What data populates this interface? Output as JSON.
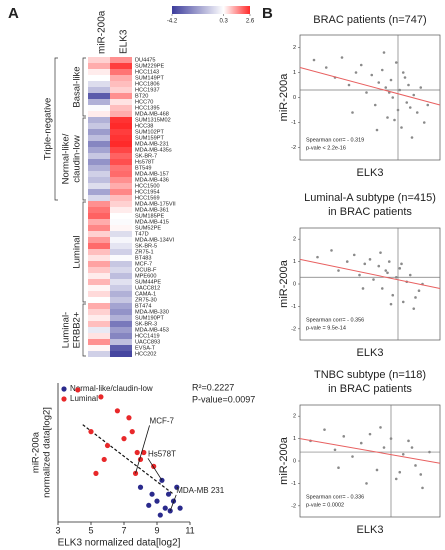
{
  "panel_a": {
    "label": "A",
    "heatmap": {
      "columns": [
        "miR-200a",
        "ELK3"
      ],
      "colorbar": {
        "ticks": [
          -4.2,
          0.3,
          2.6
        ],
        "colors": [
          "#3d3d9c",
          "#ffffff",
          "#ff2a2a"
        ]
      },
      "supergroup": "Triple-negative",
      "groups": [
        {
          "name": [
            "Basal-like"
          ],
          "rows": [
            {
              "name": "DU4475",
              "values": [
                0.8,
                1.5
              ]
            },
            {
              "name": "SUM229PE",
              "values": [
                1.2,
                2.4
              ]
            },
            {
              "name": "HCC1143",
              "values": [
                0.5,
                1.8
              ]
            },
            {
              "name": "SUM149PT",
              "values": [
                0.3,
                1.2
              ]
            },
            {
              "name": "HCC1806",
              "values": [
                -0.5,
                1.0
              ]
            },
            {
              "name": "HCC1937",
              "values": [
                -1.2,
                0.8
              ]
            },
            {
              "name": "BT20",
              "values": [
                -3.5,
                1.5
              ]
            },
            {
              "name": "HCC70",
              "values": [
                -1.5,
                0.6
              ]
            },
            {
              "name": "HCC1395",
              "values": [
                0.2,
                1.0
              ]
            },
            {
              "name": "MDA-MB-468",
              "values": [
                0.5,
                1.2
              ]
            }
          ]
        },
        {
          "name": [
            "Normal-like/",
            "claudin-low"
          ],
          "rows": [
            {
              "name": "SUM1315M02",
              "values": [
                -1.5,
                2.5
              ]
            },
            {
              "name": "HCC38",
              "values": [
                -1.0,
                2.6
              ]
            },
            {
              "name": "SUM102PT",
              "values": [
                -2.0,
                2.4
              ]
            },
            {
              "name": "SUM159PT",
              "values": [
                -1.2,
                2.5
              ]
            },
            {
              "name": "MDA-MB-231",
              "values": [
                -2.5,
                2.6
              ]
            },
            {
              "name": "MDA-MB-435s",
              "values": [
                -1.8,
                2.3
              ]
            },
            {
              "name": "SK-BR-7",
              "values": [
                -1.0,
                2.0
              ]
            },
            {
              "name": "Hs578T",
              "values": [
                -2.2,
                2.2
              ]
            },
            {
              "name": "BT549",
              "values": [
                -1.5,
                1.8
              ]
            },
            {
              "name": "MDA-MB-157",
              "values": [
                -0.8,
                1.9
              ]
            },
            {
              "name": "MDA-MB-436",
              "values": [
                -1.2,
                1.5
              ]
            },
            {
              "name": "HCC1500",
              "values": [
                -0.5,
                1.2
              ]
            },
            {
              "name": "HCC1954",
              "values": [
                -1.8,
                1.6
              ]
            },
            {
              "name": "HCC1569",
              "values": [
                -0.6,
                1.0
              ]
            }
          ]
        },
        {
          "name": [
            "Luminal"
          ],
          "rows": [
            {
              "name": "MDA-MB-175VII",
              "values": [
                1.5,
                0.8
              ]
            },
            {
              "name": "MDA-MB-361",
              "values": [
                1.8,
                0.5
              ]
            },
            {
              "name": "SUM185PE",
              "values": [
                2.0,
                0.3
              ]
            },
            {
              "name": "MDA-MB-415",
              "values": [
                1.2,
                0.2
              ]
            },
            {
              "name": "SUM52PE",
              "values": [
                1.6,
                0.4
              ]
            },
            {
              "name": "T47D",
              "values": [
                0.8,
                -0.5
              ]
            },
            {
              "name": "MDA-MB-134VI",
              "values": [
                1.4,
                0.1
              ]
            },
            {
              "name": "SK-BR-5",
              "values": [
                1.9,
                -0.3
              ]
            },
            {
              "name": "ZR75-1",
              "values": [
                1.0,
                -0.8
              ]
            },
            {
              "name": "BT483",
              "values": [
                0.6,
                0.2
              ]
            },
            {
              "name": "MCF-7",
              "values": [
                1.3,
                -1.0
              ]
            },
            {
              "name": "OCUB-F",
              "values": [
                0.9,
                -0.6
              ]
            },
            {
              "name": "MPE600",
              "values": [
                0.5,
                -1.2
              ]
            },
            {
              "name": "SUM44PE",
              "values": [
                1.1,
                -0.4
              ]
            },
            {
              "name": "UACC812",
              "values": [
                0.4,
                -0.9
              ]
            },
            {
              "name": "CAMA-1",
              "values": [
                0.7,
                -1.5
              ]
            },
            {
              "name": "ZR75-30",
              "values": [
                0.3,
                -1.0
              ]
            }
          ]
        },
        {
          "name": [
            "Luminal-",
            "ERBB2+"
          ],
          "rows": [
            {
              "name": "BT474",
              "values": [
                1.2,
                -1.8
              ]
            },
            {
              "name": "MDA-MB-330",
              "values": [
                0.8,
                -2.2
              ]
            },
            {
              "name": "SUM190PT",
              "values": [
                0.5,
                -1.5
              ]
            },
            {
              "name": "SK-BR-3",
              "values": [
                1.0,
                -2.8
              ]
            },
            {
              "name": "MDA-MB-453",
              "values": [
                -0.2,
                -2.0
              ]
            },
            {
              "name": "HCC1419",
              "values": [
                0.6,
                -2.5
              ]
            },
            {
              "name": "UACC893",
              "values": [
                1.5,
                -1.2
              ]
            },
            {
              "name": "EVSA-T",
              "values": [
                0.4,
                -3.5
              ]
            },
            {
              "name": "HCC202",
              "values": [
                -0.8,
                -4.0
              ]
            }
          ]
        }
      ]
    },
    "scatter": {
      "type": "scatter",
      "xlabel": "ELK3 normalized data[log2]",
      "ylabel": [
        "miR-200a",
        "normalized data[log2]"
      ],
      "xlim": [
        3,
        11
      ],
      "xticks": [
        3,
        5,
        7,
        9,
        11
      ],
      "ylim": [
        0,
        10
      ],
      "series": [
        {
          "name": "Normal-like/claudin-low",
          "color": "#2a2a8c",
          "x": [
            8.0,
            8.7,
            9.0,
            9.3,
            9.5,
            9.7,
            9.8,
            10.0,
            10.2,
            9.2,
            8.5,
            10.4
          ],
          "y": [
            2.5,
            2.0,
            1.5,
            3.0,
            1.0,
            2.0,
            0.8,
            1.5,
            2.5,
            0.5,
            1.2,
            1.0
          ]
        },
        {
          "name": "Luminal",
          "color": "#e8282a",
          "x": [
            4.2,
            5.0,
            5.6,
            5.8,
            6.0,
            6.6,
            7.0,
            7.3,
            7.5,
            7.8,
            8.0,
            8.2,
            7.7,
            8.8,
            5.3
          ],
          "y": [
            9.5,
            6.5,
            9.0,
            4.5,
            5.5,
            8.0,
            6.0,
            7.5,
            6.5,
            5.0,
            4.5,
            5.0,
            3.5,
            4.0,
            3.5
          ]
        }
      ],
      "fit": {
        "x": [
          4.5,
          10.0
        ],
        "y": [
          7.0,
          2.0
        ]
      },
      "stats": [
        "R²=0.2227",
        "P-value=0.0097"
      ],
      "annotations": [
        {
          "text": "MCF-7",
          "series": 1,
          "index": 12
        },
        {
          "text": "Hs578T",
          "series": 0,
          "index": 3
        },
        {
          "text": "MDA-MB 231",
          "series": 0,
          "index": 6
        }
      ]
    }
  },
  "panel_b": {
    "label": "B",
    "charts": [
      {
        "type": "scatter",
        "title": [
          "BRAC patients (n=747)"
        ],
        "xlabel": "ELK3",
        "ylabel": "miR-200a",
        "xlim": [
          -4,
          4
        ],
        "ylim": [
          -2.5,
          2.5
        ],
        "yticks": [
          -2,
          -1,
          0,
          1,
          2
        ],
        "color": "#8a8a8a",
        "x": [
          -3.2,
          -2.5,
          -2.0,
          -1.6,
          -1.2,
          -0.8,
          -0.5,
          -0.2,
          0.1,
          0.3,
          0.5,
          0.7,
          0.9,
          1.0,
          1.2,
          1.3,
          1.5,
          1.6,
          1.7,
          1.8,
          2.0,
          2.1,
          2.2,
          2.4,
          2.5,
          2.7,
          2.9,
          3.1,
          3.3,
          0.8,
          1.4,
          1.9,
          2.3,
          -1.0,
          0.4,
          1.1
        ],
        "y": [
          1.5,
          1.2,
          0.8,
          1.6,
          0.5,
          1.0,
          1.3,
          0.2,
          0.9,
          -0.3,
          0.6,
          1.1,
          0.4,
          -0.8,
          0.7,
          0.0,
          1.4,
          -0.5,
          0.3,
          -1.2,
          0.8,
          -0.2,
          0.5,
          -1.6,
          0.1,
          -0.6,
          0.4,
          -1.0,
          -0.3,
          1.8,
          -0.9,
          1.0,
          -0.4,
          -0.6,
          -1.3,
          0.2
        ],
        "fit": {
          "x": [
            -4,
            4
          ],
          "y": [
            1.2,
            -0.3
          ]
        },
        "ref": {
          "x": 1.6,
          "y": 0.3
        },
        "stats": [
          "Spearman corr= - 0.319",
          "p-vale < 2.2e-16"
        ]
      },
      {
        "type": "scatter",
        "title": [
          "Luminal-A subtype (n=415)",
          "in BRAC patients"
        ],
        "xlabel": "ELK3",
        "ylabel": "miR-200a",
        "xlim": [
          -4,
          4
        ],
        "ylim": [
          -2.5,
          2.5
        ],
        "yticks": [
          -2,
          -1,
          0,
          1,
          2
        ],
        "color": "#8a8a8a",
        "x": [
          -3.0,
          -2.2,
          -1.8,
          -1.3,
          -0.9,
          -0.6,
          -0.3,
          0.0,
          0.2,
          0.5,
          0.7,
          0.9,
          1.1,
          1.3,
          1.5,
          1.7,
          1.9,
          2.1,
          2.3,
          2.5,
          2.8,
          3.0,
          0.6,
          1.2,
          1.8,
          -0.4,
          2.6,
          1.0
        ],
        "y": [
          1.2,
          1.5,
          0.6,
          1.0,
          1.3,
          0.4,
          0.9,
          1.1,
          0.2,
          0.8,
          -0.2,
          0.6,
          1.0,
          -0.5,
          0.3,
          0.7,
          -0.8,
          0.1,
          0.4,
          -1.1,
          -0.3,
          0.0,
          1.4,
          -0.9,
          0.9,
          -0.2,
          -0.6,
          0.5
        ],
        "fit": {
          "x": [
            -4,
            4
          ],
          "y": [
            1.1,
            -0.2
          ]
        },
        "ref": {
          "x": 1.6,
          "y": 0.3
        },
        "stats": [
          "Spearman corr= - 0.356",
          "p-vale = 9.5e-14"
        ]
      },
      {
        "type": "scatter",
        "title": [
          "TNBC subtype (n=118)",
          "in BRAC patients"
        ],
        "xlabel": "ELK3",
        "ylabel": "miR-200a",
        "xlim": [
          -4,
          4
        ],
        "ylim": [
          -2.5,
          2.5
        ],
        "yticks": [
          -2,
          -1,
          0,
          1,
          2
        ],
        "color": "#8a8a8a",
        "x": [
          -3.4,
          -2.6,
          -2.0,
          -1.5,
          -1.0,
          -0.5,
          0.0,
          0.4,
          0.8,
          1.2,
          1.5,
          1.9,
          2.2,
          2.6,
          3.0,
          3.4,
          -1.8,
          0.6,
          1.7,
          2.4,
          -0.2,
          2.9
        ],
        "y": [
          0.9,
          1.4,
          0.5,
          1.1,
          0.2,
          0.8,
          1.2,
          -0.4,
          0.6,
          1.0,
          -0.8,
          0.3,
          0.9,
          -0.2,
          -1.2,
          0.4,
          -0.3,
          1.5,
          -0.5,
          0.6,
          -1.0,
          -0.6
        ],
        "fit": {
          "x": [
            -4,
            4
          ],
          "y": [
            1.0,
            -0.1
          ]
        },
        "ref": {
          "x": 1.2,
          "y": 0.4
        },
        "stats": [
          "Spearman corr= - 0.336",
          "p-vale = 0.0002"
        ]
      }
    ]
  }
}
